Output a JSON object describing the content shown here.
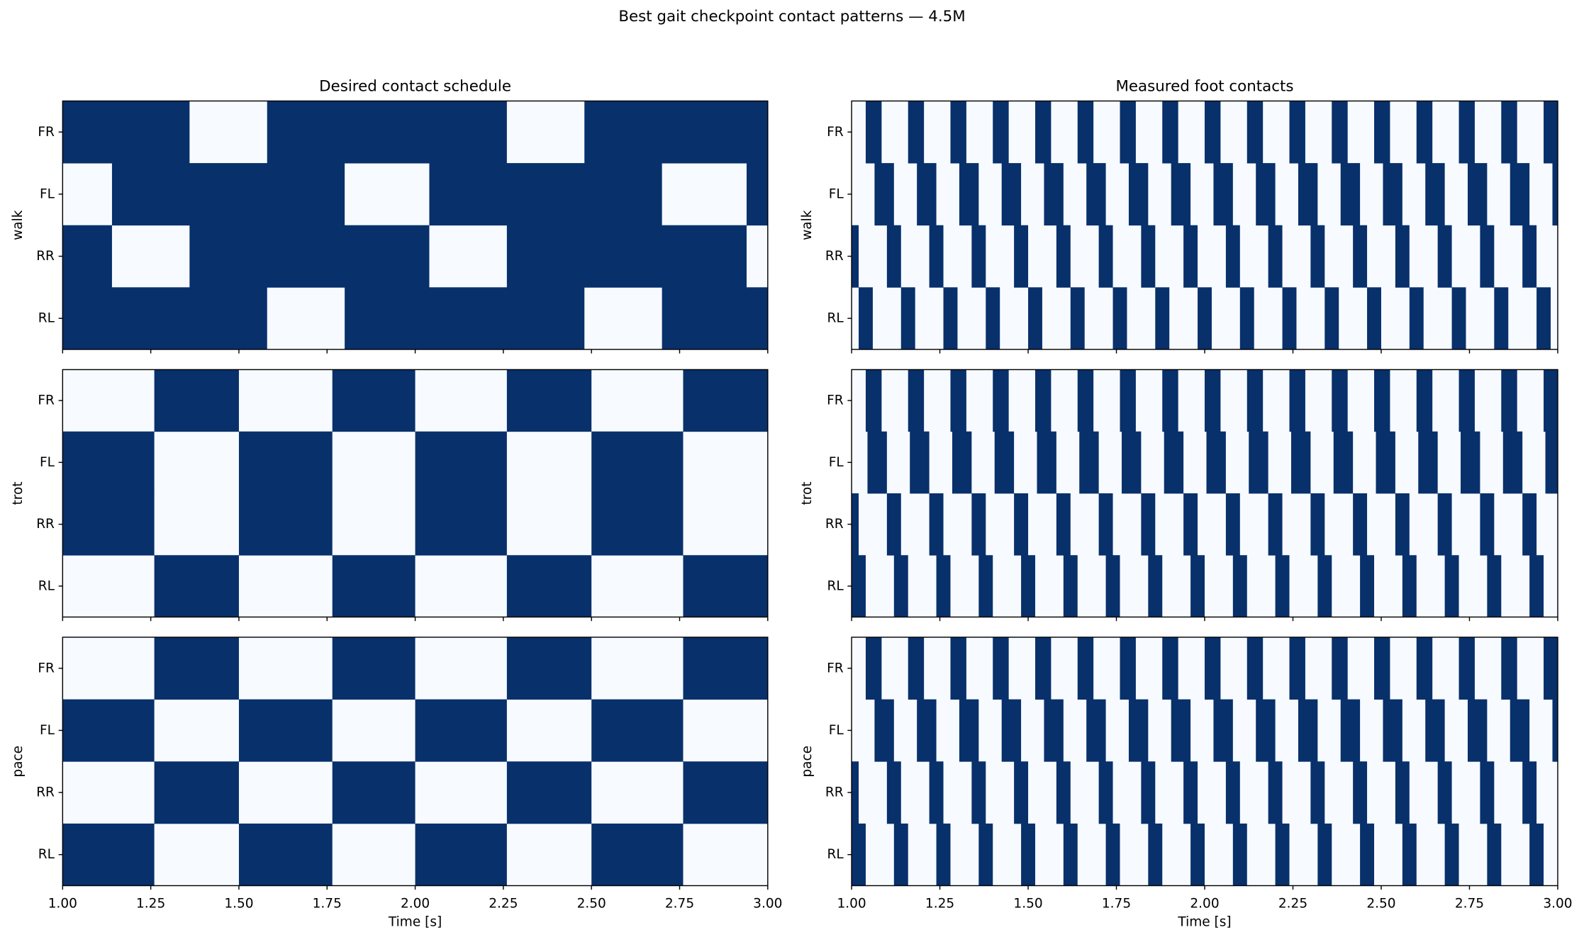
{
  "title": "Best gait checkpoint contact patterns — 4.5M",
  "chart_data": [
    {
      "type": "contact",
      "title": "Desired contact schedule",
      "ylabel": "walk",
      "categories": [
        "FR",
        "FL",
        "RR",
        "RL"
      ],
      "color": "#08306b",
      "background": "#f7fbff",
      "xlim": [
        1,
        3
      ],
      "xticks": [
        1,
        1.25,
        1.5,
        1.75,
        2,
        2.25,
        2.5,
        2.75,
        3
      ],
      "rows": [
        [
          [
            1.0,
            1.36
          ],
          [
            1.58,
            2.26
          ],
          [
            2.48,
            3.0
          ]
        ],
        [
          [
            1.14,
            1.8
          ],
          [
            2.04,
            2.7
          ],
          [
            2.94,
            3.0
          ]
        ],
        [
          [
            1.0,
            1.14
          ],
          [
            1.36,
            2.04
          ],
          [
            2.26,
            2.94
          ]
        ],
        [
          [
            1.0,
            1.58
          ],
          [
            1.8,
            2.48
          ],
          [
            2.7,
            3.0
          ]
        ]
      ]
    },
    {
      "type": "contact",
      "title": "Measured foot contacts",
      "ylabel": "walk",
      "categories": [
        "FR",
        "FL",
        "RR",
        "RL"
      ],
      "color": "#08306b",
      "background": "#f7fbff",
      "xlim": [
        1,
        3
      ],
      "xticks": [
        1,
        1.25,
        1.5,
        1.75,
        2,
        2.25,
        2.5,
        2.75,
        3
      ],
      "rows": [
        [
          [
            1.04,
            1.085
          ],
          [
            1.16,
            1.205
          ],
          [
            1.28,
            1.325
          ],
          [
            1.4,
            1.445
          ],
          [
            1.52,
            1.565
          ],
          [
            1.64,
            1.685
          ],
          [
            1.76,
            1.805
          ],
          [
            1.88,
            1.925
          ],
          [
            2.0,
            2.045
          ],
          [
            2.12,
            2.165
          ],
          [
            2.24,
            2.285
          ],
          [
            2.36,
            2.405
          ],
          [
            2.48,
            2.525
          ],
          [
            2.6,
            2.645
          ],
          [
            2.72,
            2.765
          ],
          [
            2.84,
            2.885
          ],
          [
            2.96,
            3.0
          ]
        ],
        [
          [
            1.065,
            1.12
          ],
          [
            1.185,
            1.24
          ],
          [
            1.305,
            1.36
          ],
          [
            1.425,
            1.48
          ],
          [
            1.545,
            1.6
          ],
          [
            1.665,
            1.72
          ],
          [
            1.785,
            1.84
          ],
          [
            1.905,
            1.96
          ],
          [
            2.025,
            2.08
          ],
          [
            2.145,
            2.2
          ],
          [
            2.265,
            2.32
          ],
          [
            2.385,
            2.44
          ],
          [
            2.505,
            2.56
          ],
          [
            2.625,
            2.68
          ],
          [
            2.745,
            2.8
          ],
          [
            2.865,
            2.92
          ],
          [
            2.985,
            3.0
          ]
        ],
        [
          [
            1.0,
            1.02
          ],
          [
            1.1,
            1.14
          ],
          [
            1.22,
            1.26
          ],
          [
            1.34,
            1.38
          ],
          [
            1.46,
            1.5
          ],
          [
            1.58,
            1.62
          ],
          [
            1.7,
            1.74
          ],
          [
            1.82,
            1.86
          ],
          [
            1.94,
            1.98
          ],
          [
            2.06,
            2.1
          ],
          [
            2.18,
            2.22
          ],
          [
            2.3,
            2.34
          ],
          [
            2.42,
            2.46
          ],
          [
            2.54,
            2.58
          ],
          [
            2.66,
            2.7
          ],
          [
            2.78,
            2.82
          ],
          [
            2.9,
            2.94
          ]
        ],
        [
          [
            1.02,
            1.06
          ],
          [
            1.14,
            1.18
          ],
          [
            1.26,
            1.3
          ],
          [
            1.38,
            1.42
          ],
          [
            1.5,
            1.54
          ],
          [
            1.62,
            1.66
          ],
          [
            1.74,
            1.78
          ],
          [
            1.86,
            1.9
          ],
          [
            1.98,
            2.02
          ],
          [
            2.1,
            2.14
          ],
          [
            2.22,
            2.26
          ],
          [
            2.34,
            2.38
          ],
          [
            2.46,
            2.5
          ],
          [
            2.58,
            2.62
          ],
          [
            2.7,
            2.74
          ],
          [
            2.82,
            2.86
          ],
          [
            2.94,
            2.98
          ]
        ]
      ]
    },
    {
      "type": "contact",
      "ylabel": "trot",
      "categories": [
        "FR",
        "FL",
        "RR",
        "RL"
      ],
      "color": "#08306b",
      "background": "#f7fbff",
      "xlim": [
        1,
        3
      ],
      "xticks": [
        1,
        1.25,
        1.5,
        1.75,
        2,
        2.25,
        2.5,
        2.75,
        3
      ],
      "rows": [
        [
          [
            1.26,
            1.5
          ],
          [
            1.765,
            2.0
          ],
          [
            2.26,
            2.5
          ],
          [
            2.76,
            3.0
          ]
        ],
        [
          [
            1.0,
            1.26
          ],
          [
            1.5,
            1.765
          ],
          [
            2.0,
            2.26
          ],
          [
            2.5,
            2.76
          ]
        ],
        [
          [
            1.0,
            1.26
          ],
          [
            1.5,
            1.765
          ],
          [
            2.0,
            2.26
          ],
          [
            2.5,
            2.76
          ]
        ],
        [
          [
            1.26,
            1.5
          ],
          [
            1.765,
            2.0
          ],
          [
            2.26,
            2.5
          ],
          [
            2.76,
            3.0
          ]
        ]
      ]
    },
    {
      "type": "contact",
      "ylabel": "trot",
      "categories": [
        "FR",
        "FL",
        "RR",
        "RL"
      ],
      "color": "#08306b",
      "background": "#f7fbff",
      "xlim": [
        1,
        3
      ],
      "xticks": [
        1,
        1.25,
        1.5,
        1.75,
        2,
        2.25,
        2.5,
        2.75,
        3
      ],
      "rows": [
        [
          [
            1.04,
            1.085
          ],
          [
            1.16,
            1.205
          ],
          [
            1.28,
            1.325
          ],
          [
            1.4,
            1.445
          ],
          [
            1.52,
            1.565
          ],
          [
            1.64,
            1.685
          ],
          [
            1.76,
            1.805
          ],
          [
            1.88,
            1.925
          ],
          [
            2.0,
            2.045
          ],
          [
            2.12,
            2.165
          ],
          [
            2.24,
            2.285
          ],
          [
            2.36,
            2.405
          ],
          [
            2.48,
            2.525
          ],
          [
            2.6,
            2.645
          ],
          [
            2.72,
            2.765
          ],
          [
            2.84,
            2.885
          ],
          [
            2.96,
            3.0
          ]
        ],
        [
          [
            1.045,
            1.1
          ],
          [
            1.165,
            1.22
          ],
          [
            1.285,
            1.34
          ],
          [
            1.405,
            1.46
          ],
          [
            1.525,
            1.58
          ],
          [
            1.645,
            1.7
          ],
          [
            1.765,
            1.82
          ],
          [
            1.885,
            1.94
          ],
          [
            2.005,
            2.06
          ],
          [
            2.125,
            2.18
          ],
          [
            2.245,
            2.3
          ],
          [
            2.365,
            2.42
          ],
          [
            2.485,
            2.54
          ],
          [
            2.605,
            2.66
          ],
          [
            2.725,
            2.78
          ],
          [
            2.845,
            2.9
          ],
          [
            2.965,
            3.0
          ]
        ],
        [
          [
            1.0,
            1.02
          ],
          [
            1.1,
            1.14
          ],
          [
            1.22,
            1.26
          ],
          [
            1.34,
            1.38
          ],
          [
            1.46,
            1.5
          ],
          [
            1.58,
            1.62
          ],
          [
            1.7,
            1.74
          ],
          [
            1.82,
            1.86
          ],
          [
            1.94,
            1.98
          ],
          [
            2.06,
            2.1
          ],
          [
            2.18,
            2.22
          ],
          [
            2.3,
            2.34
          ],
          [
            2.42,
            2.46
          ],
          [
            2.54,
            2.58
          ],
          [
            2.66,
            2.7
          ],
          [
            2.78,
            2.82
          ],
          [
            2.9,
            2.94
          ]
        ],
        [
          [
            1.0,
            1.04
          ],
          [
            1.12,
            1.16
          ],
          [
            1.24,
            1.28
          ],
          [
            1.36,
            1.4
          ],
          [
            1.48,
            1.52
          ],
          [
            1.6,
            1.64
          ],
          [
            1.72,
            1.76
          ],
          [
            1.84,
            1.88
          ],
          [
            1.96,
            2.0
          ],
          [
            2.08,
            2.12
          ],
          [
            2.2,
            2.24
          ],
          [
            2.32,
            2.36
          ],
          [
            2.44,
            2.48
          ],
          [
            2.56,
            2.6
          ],
          [
            2.68,
            2.72
          ],
          [
            2.8,
            2.84
          ],
          [
            2.92,
            2.96
          ]
        ]
      ]
    },
    {
      "type": "contact",
      "ylabel": "pace",
      "xlabel": "Time [s]",
      "categories": [
        "FR",
        "FL",
        "RR",
        "RL"
      ],
      "color": "#08306b",
      "background": "#f7fbff",
      "xlim": [
        1,
        3
      ],
      "xticks": [
        {
          "value": 1,
          "label": "1.00"
        },
        {
          "value": 1.25,
          "label": "1.25"
        },
        {
          "value": 1.5,
          "label": "1.50"
        },
        {
          "value": 1.75,
          "label": "1.75"
        },
        {
          "value": 2,
          "label": "2.00"
        },
        {
          "value": 2.25,
          "label": "2.25"
        },
        {
          "value": 2.5,
          "label": "2.50"
        },
        {
          "value": 2.75,
          "label": "2.75"
        },
        {
          "value": 3,
          "label": "3.00"
        }
      ],
      "rows": [
        [
          [
            1.26,
            1.5
          ],
          [
            1.765,
            2.0
          ],
          [
            2.26,
            2.5
          ],
          [
            2.76,
            3.0
          ]
        ],
        [
          [
            1.0,
            1.26
          ],
          [
            1.5,
            1.765
          ],
          [
            2.0,
            2.26
          ],
          [
            2.5,
            2.76
          ]
        ],
        [
          [
            1.26,
            1.5
          ],
          [
            1.765,
            2.0
          ],
          [
            2.26,
            2.5
          ],
          [
            2.76,
            3.0
          ]
        ],
        [
          [
            1.0,
            1.26
          ],
          [
            1.5,
            1.765
          ],
          [
            2.0,
            2.26
          ],
          [
            2.5,
            2.76
          ]
        ]
      ]
    },
    {
      "type": "contact",
      "ylabel": "pace",
      "xlabel": "Time [s]",
      "categories": [
        "FR",
        "FL",
        "RR",
        "RL"
      ],
      "color": "#08306b",
      "background": "#f7fbff",
      "xlim": [
        1,
        3
      ],
      "xticks": [
        {
          "value": 1,
          "label": "1.00"
        },
        {
          "value": 1.25,
          "label": "1.25"
        },
        {
          "value": 1.5,
          "label": "1.50"
        },
        {
          "value": 1.75,
          "label": "1.75"
        },
        {
          "value": 2,
          "label": "2.00"
        },
        {
          "value": 2.25,
          "label": "2.25"
        },
        {
          "value": 2.5,
          "label": "2.50"
        },
        {
          "value": 2.75,
          "label": "2.75"
        },
        {
          "value": 3,
          "label": "3.00"
        }
      ],
      "rows": [
        [
          [
            1.04,
            1.085
          ],
          [
            1.16,
            1.205
          ],
          [
            1.28,
            1.325
          ],
          [
            1.4,
            1.445
          ],
          [
            1.52,
            1.565
          ],
          [
            1.64,
            1.685
          ],
          [
            1.76,
            1.805
          ],
          [
            1.88,
            1.925
          ],
          [
            2.0,
            2.045
          ],
          [
            2.12,
            2.165
          ],
          [
            2.24,
            2.285
          ],
          [
            2.36,
            2.405
          ],
          [
            2.48,
            2.525
          ],
          [
            2.6,
            2.645
          ],
          [
            2.72,
            2.765
          ],
          [
            2.84,
            2.885
          ],
          [
            2.96,
            3.0
          ]
        ],
        [
          [
            1.065,
            1.12
          ],
          [
            1.185,
            1.24
          ],
          [
            1.305,
            1.36
          ],
          [
            1.425,
            1.48
          ],
          [
            1.545,
            1.6
          ],
          [
            1.665,
            1.72
          ],
          [
            1.785,
            1.84
          ],
          [
            1.905,
            1.96
          ],
          [
            2.025,
            2.08
          ],
          [
            2.145,
            2.2
          ],
          [
            2.265,
            2.32
          ],
          [
            2.385,
            2.44
          ],
          [
            2.505,
            2.56
          ],
          [
            2.625,
            2.68
          ],
          [
            2.745,
            2.8
          ],
          [
            2.865,
            2.92
          ],
          [
            2.985,
            3.0
          ]
        ],
        [
          [
            1.0,
            1.02
          ],
          [
            1.1,
            1.14
          ],
          [
            1.22,
            1.26
          ],
          [
            1.34,
            1.38
          ],
          [
            1.46,
            1.5
          ],
          [
            1.58,
            1.62
          ],
          [
            1.7,
            1.74
          ],
          [
            1.82,
            1.86
          ],
          [
            1.94,
            1.98
          ],
          [
            2.06,
            2.1
          ],
          [
            2.18,
            2.22
          ],
          [
            2.3,
            2.34
          ],
          [
            2.42,
            2.46
          ],
          [
            2.54,
            2.58
          ],
          [
            2.66,
            2.7
          ],
          [
            2.78,
            2.82
          ],
          [
            2.9,
            2.94
          ]
        ],
        [
          [
            1.0,
            1.04
          ],
          [
            1.12,
            1.16
          ],
          [
            1.24,
            1.28
          ],
          [
            1.36,
            1.4
          ],
          [
            1.48,
            1.52
          ],
          [
            1.6,
            1.64
          ],
          [
            1.72,
            1.76
          ],
          [
            1.84,
            1.88
          ],
          [
            1.96,
            2.0
          ],
          [
            2.08,
            2.12
          ],
          [
            2.2,
            2.24
          ],
          [
            2.32,
            2.36
          ],
          [
            2.44,
            2.48
          ],
          [
            2.56,
            2.6
          ],
          [
            2.68,
            2.72
          ],
          [
            2.8,
            2.84
          ],
          [
            2.92,
            2.96
          ]
        ]
      ]
    }
  ]
}
